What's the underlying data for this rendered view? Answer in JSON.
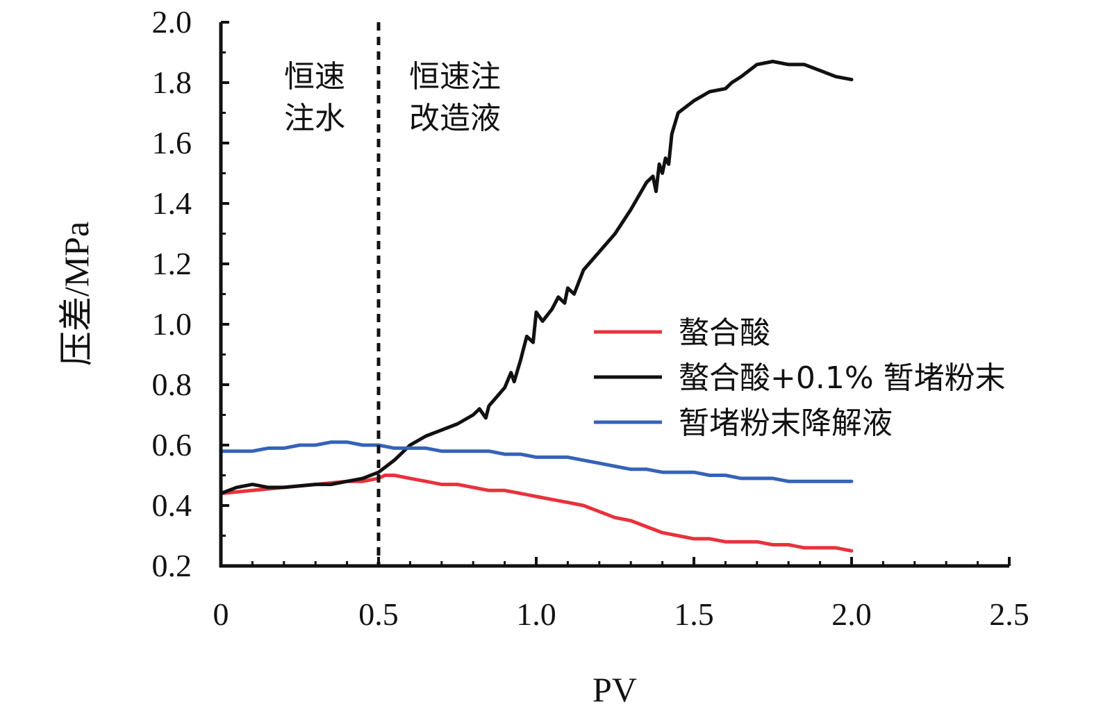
{
  "chart_data": {
    "type": "line",
    "xlabel": "PV",
    "ylabel": "压差/MPa",
    "xlim": [
      0,
      2.5
    ],
    "ylim": [
      0.2,
      2.0
    ],
    "xticks": [
      "0",
      "0.5",
      "1.0",
      "1.5",
      "2.0",
      "2.5"
    ],
    "yticks": [
      "0.2",
      "0.4",
      "0.6",
      "0.8",
      "1.0",
      "1.2",
      "1.4",
      "1.6",
      "1.8",
      "2.0"
    ],
    "grid": false,
    "legend_position": "center-right",
    "annotations": [
      {
        "lines": [
          "恒速",
          "注水"
        ]
      },
      {
        "lines": [
          "恒速注",
          "改造液"
        ]
      }
    ],
    "vline": {
      "x": 0.5,
      "style": "dashed"
    },
    "series": [
      {
        "name": "螯合酸",
        "color": "#e8323c",
        "x": [
          0,
          0.1,
          0.2,
          0.3,
          0.4,
          0.45,
          0.5,
          0.52,
          0.55,
          0.6,
          0.65,
          0.7,
          0.75,
          0.8,
          0.85,
          0.9,
          0.95,
          1.0,
          1.05,
          1.1,
          1.15,
          1.2,
          1.25,
          1.3,
          1.35,
          1.4,
          1.45,
          1.5,
          1.55,
          1.6,
          1.65,
          1.7,
          1.75,
          1.8,
          1.85,
          1.9,
          1.95,
          2.0
        ],
        "y": [
          0.44,
          0.45,
          0.46,
          0.47,
          0.48,
          0.48,
          0.49,
          0.5,
          0.5,
          0.49,
          0.48,
          0.47,
          0.47,
          0.46,
          0.45,
          0.45,
          0.44,
          0.43,
          0.42,
          0.41,
          0.4,
          0.38,
          0.36,
          0.35,
          0.33,
          0.31,
          0.3,
          0.29,
          0.29,
          0.28,
          0.28,
          0.28,
          0.27,
          0.27,
          0.26,
          0.26,
          0.26,
          0.25
        ]
      },
      {
        "name": "螯合酸+0.1% 暂堵粉末",
        "color": "#111111",
        "x": [
          0,
          0.05,
          0.1,
          0.15,
          0.2,
          0.3,
          0.35,
          0.4,
          0.45,
          0.5,
          0.55,
          0.6,
          0.65,
          0.7,
          0.75,
          0.8,
          0.82,
          0.84,
          0.85,
          0.9,
          0.92,
          0.93,
          0.95,
          0.96,
          0.97,
          0.99,
          1.0,
          1.02,
          1.05,
          1.07,
          1.09,
          1.1,
          1.12,
          1.15,
          1.2,
          1.25,
          1.3,
          1.35,
          1.37,
          1.38,
          1.39,
          1.4,
          1.41,
          1.42,
          1.43,
          1.45,
          1.5,
          1.55,
          1.6,
          1.62,
          1.65,
          1.7,
          1.75,
          1.8,
          1.85,
          1.9,
          1.95,
          2.0
        ],
        "y": [
          0.44,
          0.46,
          0.47,
          0.46,
          0.46,
          0.47,
          0.47,
          0.48,
          0.49,
          0.51,
          0.55,
          0.6,
          0.63,
          0.65,
          0.67,
          0.7,
          0.72,
          0.69,
          0.73,
          0.79,
          0.84,
          0.81,
          0.88,
          0.92,
          0.96,
          0.94,
          1.04,
          1.01,
          1.05,
          1.09,
          1.07,
          1.12,
          1.1,
          1.18,
          1.24,
          1.3,
          1.38,
          1.47,
          1.49,
          1.44,
          1.53,
          1.5,
          1.55,
          1.53,
          1.63,
          1.7,
          1.74,
          1.77,
          1.78,
          1.8,
          1.82,
          1.86,
          1.87,
          1.86,
          1.86,
          1.84,
          1.82,
          1.81
        ]
      },
      {
        "name": "暂堵粉末降解液",
        "color": "#3563b8",
        "x": [
          0,
          0.05,
          0.1,
          0.15,
          0.2,
          0.25,
          0.3,
          0.35,
          0.4,
          0.45,
          0.5,
          0.55,
          0.6,
          0.65,
          0.7,
          0.75,
          0.8,
          0.85,
          0.9,
          0.95,
          1.0,
          1.05,
          1.1,
          1.15,
          1.2,
          1.25,
          1.3,
          1.35,
          1.4,
          1.45,
          1.5,
          1.55,
          1.6,
          1.65,
          1.7,
          1.75,
          1.8,
          1.85,
          1.9,
          1.95,
          2.0
        ],
        "y": [
          0.58,
          0.58,
          0.58,
          0.59,
          0.59,
          0.6,
          0.6,
          0.61,
          0.61,
          0.6,
          0.6,
          0.59,
          0.59,
          0.59,
          0.58,
          0.58,
          0.58,
          0.58,
          0.57,
          0.57,
          0.56,
          0.56,
          0.56,
          0.55,
          0.54,
          0.53,
          0.52,
          0.52,
          0.51,
          0.51,
          0.51,
          0.5,
          0.5,
          0.49,
          0.49,
          0.49,
          0.48,
          0.48,
          0.48,
          0.48,
          0.48
        ]
      }
    ]
  }
}
